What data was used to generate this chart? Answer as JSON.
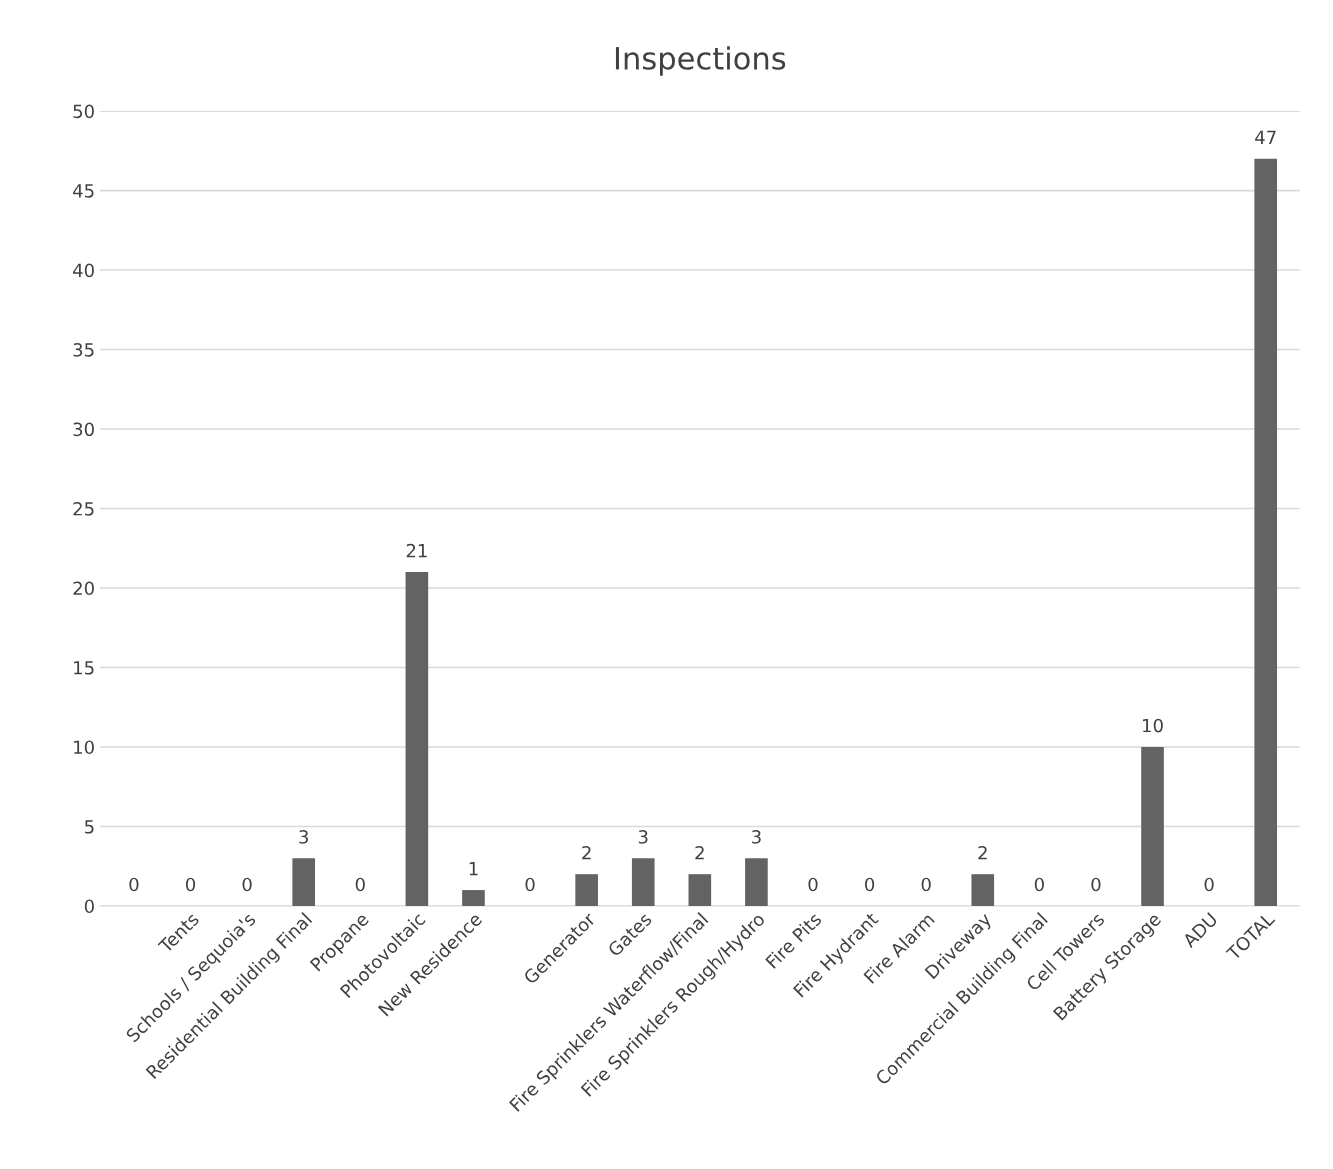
{
  "chart_data": {
    "type": "bar",
    "title": "Inspections",
    "categories": [
      null,
      "Tents",
      "Schools / Sequoia's",
      "Residential Building Final",
      "Propane",
      "Photovoltaic",
      "New Residence",
      null,
      "Generator",
      "Gates",
      "Fire Sprinklers Waterflow/Final",
      "Fire Sprinklers Rough/Hydro",
      "Fire Pits",
      "Fire Hydrant",
      "Fire Alarm",
      "Driveway",
      "Commercial Building Final",
      "Cell Towers",
      "Battery Storage",
      "ADU",
      "TOTAL"
    ],
    "values": [
      0,
      0,
      0,
      3,
      0,
      21,
      1,
      0,
      2,
      3,
      2,
      3,
      0,
      0,
      0,
      2,
      0,
      0,
      10,
      0,
      47
    ],
    "color": "#636363",
    "ylim": [
      0,
      50
    ],
    "yticks": [
      0,
      5,
      10,
      15,
      20,
      25,
      30,
      35,
      40,
      45,
      50
    ],
    "grid": "y",
    "data_labels": true
  }
}
